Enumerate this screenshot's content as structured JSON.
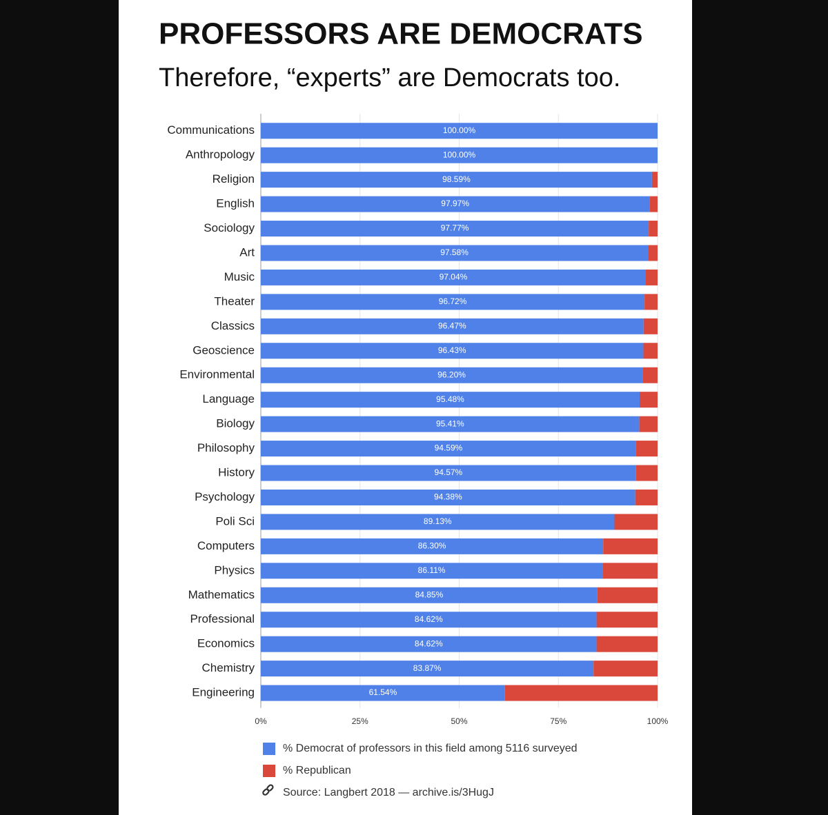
{
  "chart_data": {
    "type": "stacked-bar",
    "title": "PROFESSORS ARE DEMOCRATS",
    "subtitle": "Therefore, “experts” are Democrats too.",
    "categories": [
      "Communications",
      "Anthropology",
      "Religion",
      "English",
      "Sociology",
      "Art",
      "Music",
      "Theater",
      "Classics",
      "Geoscience",
      "Environmental",
      "Language",
      "Biology",
      "Philosophy",
      "History",
      "Psychology",
      "Poli Sci",
      "Computers",
      "Physics",
      "Mathematics",
      "Professional",
      "Economics",
      "Chemistry",
      "Engineering"
    ],
    "series": [
      {
        "name": "% Democrat of professors in this field among 5116 surveyed",
        "color": "#4f81e8",
        "values": [
          100,
          100,
          98.59,
          97.97,
          97.77,
          97.58,
          97.04,
          96.72,
          96.47,
          96.43,
          96.2,
          95.48,
          95.41,
          94.59,
          94.57,
          94.38,
          89.13,
          86.3,
          86.11,
          84.85,
          84.62,
          84.62,
          83.87,
          61.54
        ],
        "value_labels": [
          "100.00%",
          "100.00%",
          "98.59%",
          "97.97%",
          "97.77%",
          "97.58%",
          "97.04%",
          "96.72%",
          "96.47%",
          "96.43%",
          "96.20%",
          "95.48%",
          "95.41%",
          "94.59%",
          "94.57%",
          "94.38%",
          "89.13%",
          "86.30%",
          "86.11%",
          "84.85%",
          "84.62%",
          "84.62%",
          "83.87%",
          "61.54%"
        ]
      },
      {
        "name": "% Republican",
        "color": "#d9483b",
        "values": [
          0,
          0,
          1.41,
          2.03,
          2.23,
          2.42,
          2.96,
          3.28,
          3.53,
          3.57,
          3.8,
          4.52,
          4.59,
          5.41,
          5.43,
          5.62,
          10.87,
          13.7,
          13.89,
          15.15,
          15.38,
          15.38,
          16.13,
          38.46
        ]
      }
    ],
    "xlim": [
      0,
      100
    ],
    "xticks": [
      {
        "value": 0,
        "label": "0%"
      },
      {
        "value": 25,
        "label": "25%"
      },
      {
        "value": 50,
        "label": "50%"
      },
      {
        "value": 75,
        "label": "75%"
      },
      {
        "value": 100,
        "label": "100%"
      }
    ],
    "source": "Source: Langbert 2018 — archive.is/3HugJ"
  }
}
